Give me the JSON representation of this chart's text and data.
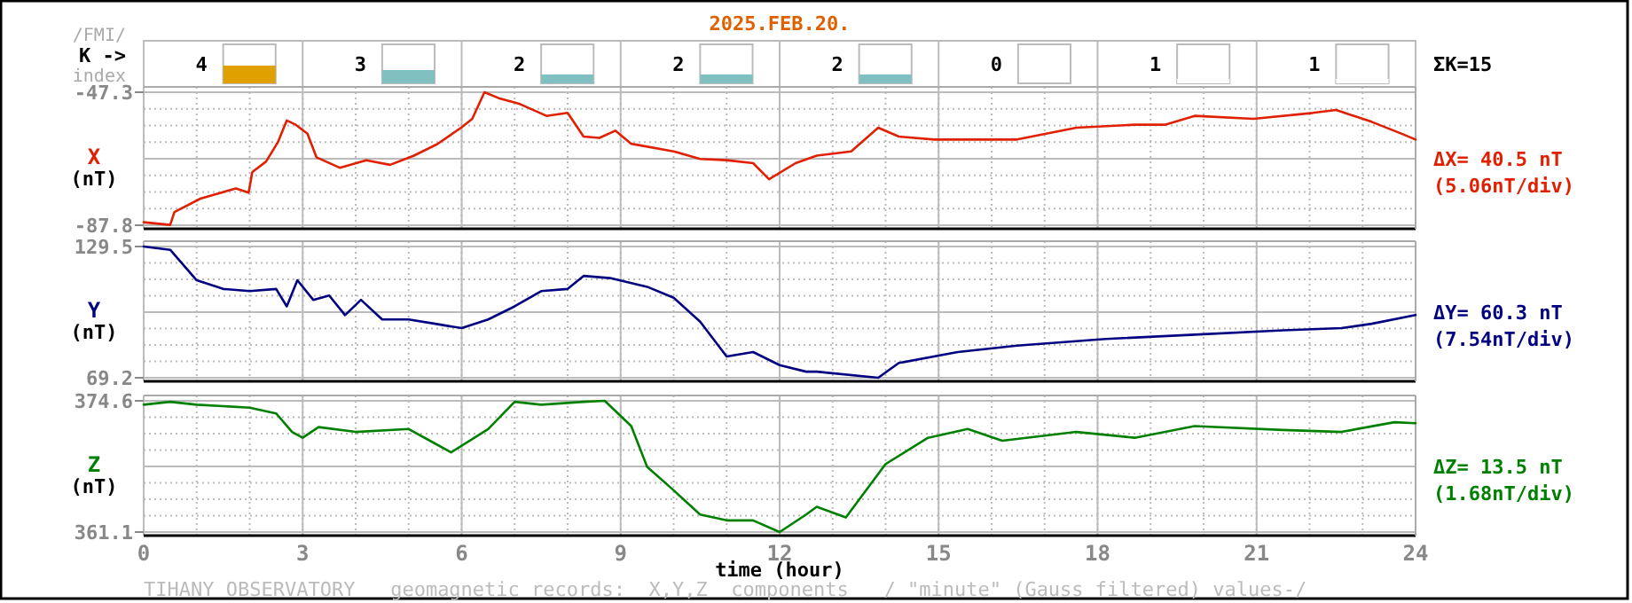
{
  "chart_data": [
    {
      "type": "other",
      "title": "2025.FEB.20.",
      "ylabel": "K ->",
      "annotations": [
        "/FMI/",
        "index",
        "ΣK=15"
      ],
      "categories": [
        null,
        null,
        null,
        null,
        null,
        null,
        null,
        null
      ],
      "values": [
        4,
        3,
        2,
        2,
        2,
        0,
        1,
        1
      ],
      "colors": [
        "#e0a000",
        "#80c0c0",
        "#80c0c0",
        "#80c0c0",
        "#80c0c0",
        "#ffffff",
        "#ffffff",
        "#ffffff"
      ],
      "data_labels": true
    },
    {
      "type": "line",
      "ylabel": "X (nT)",
      "annotations": [
        "ΔX= 40.5 nT",
        "(5.06nT/div)"
      ],
      "series": [
        {
          "color": "#e02000",
          "x": [
            0,
            0.5,
            0.58,
            1.07,
            1.74,
            1.98,
            2.05,
            2.31,
            2.53,
            2.7,
            2.87,
            3.09,
            3.26,
            3.7,
            4.2,
            4.65,
            5.1,
            5.54,
            5.99,
            6.2,
            6.43,
            6.7,
            7.1,
            7.6,
            8.0,
            8.3,
            8.6,
            8.9,
            9.2,
            10,
            10.5,
            11,
            11.5,
            11.8,
            12.3,
            12.7,
            13.35,
            13.86,
            14.25,
            14.92,
            16.48,
            17.6,
            18.7,
            19.27,
            19.83,
            20.94,
            22.06,
            22.5,
            23.17,
            23.73,
            24
          ],
          "values": [
            -86.9,
            -87.7,
            -83.8,
            -79.7,
            -76.6,
            -77.9,
            -71.6,
            -68.4,
            -62.6,
            -55.9,
            -57.2,
            -59.9,
            -67.1,
            -70.3,
            -68,
            -69.4,
            -66.6,
            -63.1,
            -58.1,
            -55.4,
            -47.3,
            -49.1,
            -50.9,
            -54.5,
            -53.6,
            -60.8,
            -61.2,
            -59,
            -63,
            -65.3,
            -67.6,
            -68,
            -68.9,
            -73.8,
            -68.9,
            -66.6,
            -65.3,
            -58.1,
            -60.8,
            -61.7,
            -61.7,
            -58.1,
            -57.2,
            -57.2,
            -54.5,
            -55.4,
            -53.6,
            -52.7,
            -56.3,
            -59.9,
            -61.7
          ]
        }
      ],
      "xlim": [
        0,
        24
      ],
      "xticks": [
        0,
        3,
        6,
        9,
        12,
        15,
        18,
        21,
        24
      ],
      "ylim": [
        -87.8,
        -47.3
      ],
      "yticks": [
        -87.8,
        -47.3
      ],
      "grid": true,
      "tick_labels": "y"
    },
    {
      "type": "line",
      "ylabel": "Y (nT)",
      "annotations": [
        "ΔY= 60.3 nT",
        "(7.54nT/div)"
      ],
      "series": [
        {
          "color": "#000080",
          "x": [
            0,
            0.5,
            1,
            1.5,
            2,
            2.5,
            2.7,
            2.9,
            3.2,
            3.5,
            3.8,
            4.1,
            4.5,
            5,
            5.5,
            6,
            6.5,
            7,
            7.5,
            8,
            8.3,
            8.8,
            9.5,
            10,
            10.5,
            11,
            11.5,
            12,
            12.5,
            12.7,
            13.86,
            14.25,
            15.36,
            16.48,
            18.15,
            19.83,
            21.5,
            22.6,
            23.17,
            24
          ],
          "values": [
            129.5,
            128,
            114,
            110,
            109,
            110,
            102,
            114,
            105,
            107,
            98,
            105,
            96,
            96,
            94,
            92,
            96,
            102,
            109,
            110,
            116,
            115,
            111,
            106,
            95,
            79,
            81,
            75,
            72,
            72,
            69.2,
            76,
            81,
            84,
            87,
            89,
            91,
            92,
            94,
            98
          ]
        }
      ],
      "xlim": [
        0,
        24
      ],
      "xticks": [
        0,
        3,
        6,
        9,
        12,
        15,
        18,
        21,
        24
      ],
      "ylim": [
        69.2,
        129.5
      ],
      "yticks": [
        69.2,
        129.5
      ],
      "grid": true,
      "tick_labels": "y"
    },
    {
      "type": "line",
      "ylabel": "Z (nT)",
      "xlabel": "time (hour)",
      "annotations": [
        "ΔZ= 13.5 nT",
        "(1.68nT/div)",
        "TIHANY OBSERVATORY   geomagnetic records:  X,Y,Z  components   / \"minute\" (Gauss filtered) values-/"
      ],
      "series": [
        {
          "color": "#008000",
          "x": [
            0,
            0.5,
            1,
            2,
            2.5,
            2.8,
            3,
            3.3,
            4,
            5,
            5.5,
            5.8,
            6.5,
            7,
            7.5,
            8.3,
            8.7,
            9.2,
            9.5,
            10,
            10.5,
            11,
            11.5,
            12,
            12.5,
            12.7,
            13.25,
            14,
            14.8,
            15.55,
            16.2,
            17.6,
            18.7,
            19.83,
            21.5,
            22.6,
            23.6,
            24
          ],
          "values": [
            374.2,
            374.5,
            374.2,
            373.9,
            373.3,
            371.4,
            370.8,
            371.9,
            371.4,
            371.7,
            370.2,
            369.3,
            371.7,
            374.5,
            374.2,
            374.5,
            374.6,
            372,
            367.8,
            365.4,
            362.9,
            362.3,
            362.3,
            361.1,
            362.9,
            363.7,
            362.6,
            368.1,
            370.8,
            371.7,
            370.5,
            371.4,
            370.8,
            372,
            371.6,
            371.4,
            372.4,
            372.3
          ]
        }
      ],
      "xlim": [
        0,
        24
      ],
      "xticks": [
        0,
        3,
        6,
        9,
        12,
        15,
        18,
        21,
        24
      ],
      "ylim": [
        361.1,
        374.6
      ],
      "yticks": [
        361.1,
        374.6
      ],
      "grid": true
    }
  ]
}
